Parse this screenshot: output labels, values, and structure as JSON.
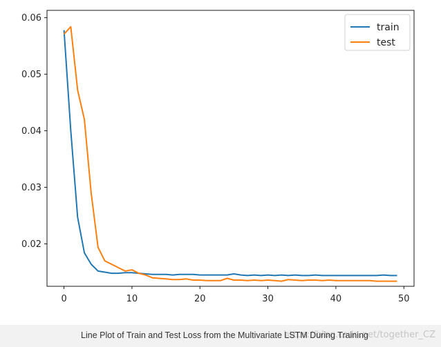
{
  "chart_data": {
    "type": "line",
    "title": "",
    "xlabel": "",
    "ylabel": "",
    "xlim": [
      -2.5,
      51.5
    ],
    "ylim": [
      0.0125,
      0.0613
    ],
    "xticks": [
      0,
      10,
      20,
      30,
      40,
      50
    ],
    "yticks": [
      0.02,
      0.03,
      0.04,
      0.05,
      0.06
    ],
    "grid": false,
    "legend_position": "top-right",
    "x": [
      0,
      1,
      2,
      3,
      4,
      5,
      6,
      7,
      8,
      9,
      10,
      11,
      12,
      13,
      14,
      15,
      16,
      17,
      18,
      19,
      20,
      21,
      22,
      23,
      24,
      25,
      26,
      27,
      28,
      29,
      30,
      31,
      32,
      33,
      34,
      35,
      36,
      37,
      38,
      39,
      40,
      41,
      42,
      43,
      44,
      45,
      46,
      47,
      48,
      49
    ],
    "series": [
      {
        "name": "train",
        "color": "#1f77b4",
        "values": [
          0.0578,
          0.04,
          0.0247,
          0.0184,
          0.0164,
          0.0152,
          0.015,
          0.0148,
          0.0148,
          0.0149,
          0.0149,
          0.0148,
          0.0147,
          0.0146,
          0.0146,
          0.0146,
          0.0145,
          0.0146,
          0.0146,
          0.0146,
          0.0145,
          0.0145,
          0.0145,
          0.0145,
          0.0145,
          0.0147,
          0.0145,
          0.0144,
          0.0145,
          0.0144,
          0.0145,
          0.0144,
          0.0145,
          0.0144,
          0.0145,
          0.0144,
          0.0144,
          0.0145,
          0.0144,
          0.0144,
          0.0144,
          0.0144,
          0.0144,
          0.0144,
          0.0144,
          0.0144,
          0.0144,
          0.0145,
          0.0144,
          0.0144
        ]
      },
      {
        "name": "test",
        "color": "#ff7f0e",
        "values": [
          0.0571,
          0.0584,
          0.0472,
          0.042,
          0.029,
          0.0194,
          0.017,
          0.0164,
          0.0158,
          0.0152,
          0.0154,
          0.0148,
          0.0145,
          0.014,
          0.0139,
          0.0138,
          0.0137,
          0.0137,
          0.0138,
          0.0136,
          0.0136,
          0.0135,
          0.0135,
          0.0135,
          0.0139,
          0.0136,
          0.0136,
          0.0135,
          0.0136,
          0.0135,
          0.0136,
          0.0135,
          0.0134,
          0.0137,
          0.0136,
          0.0135,
          0.0136,
          0.0136,
          0.0135,
          0.0136,
          0.0135,
          0.0135,
          0.0135,
          0.0135,
          0.0135,
          0.0135,
          0.0134,
          0.0134,
          0.0134,
          0.0134
        ]
      }
    ]
  },
  "caption": "Line Plot of Train and Test Loss from the Multivariate LSTM During Training",
  "watermark": "https://blog.csdn.net/together_CZ"
}
